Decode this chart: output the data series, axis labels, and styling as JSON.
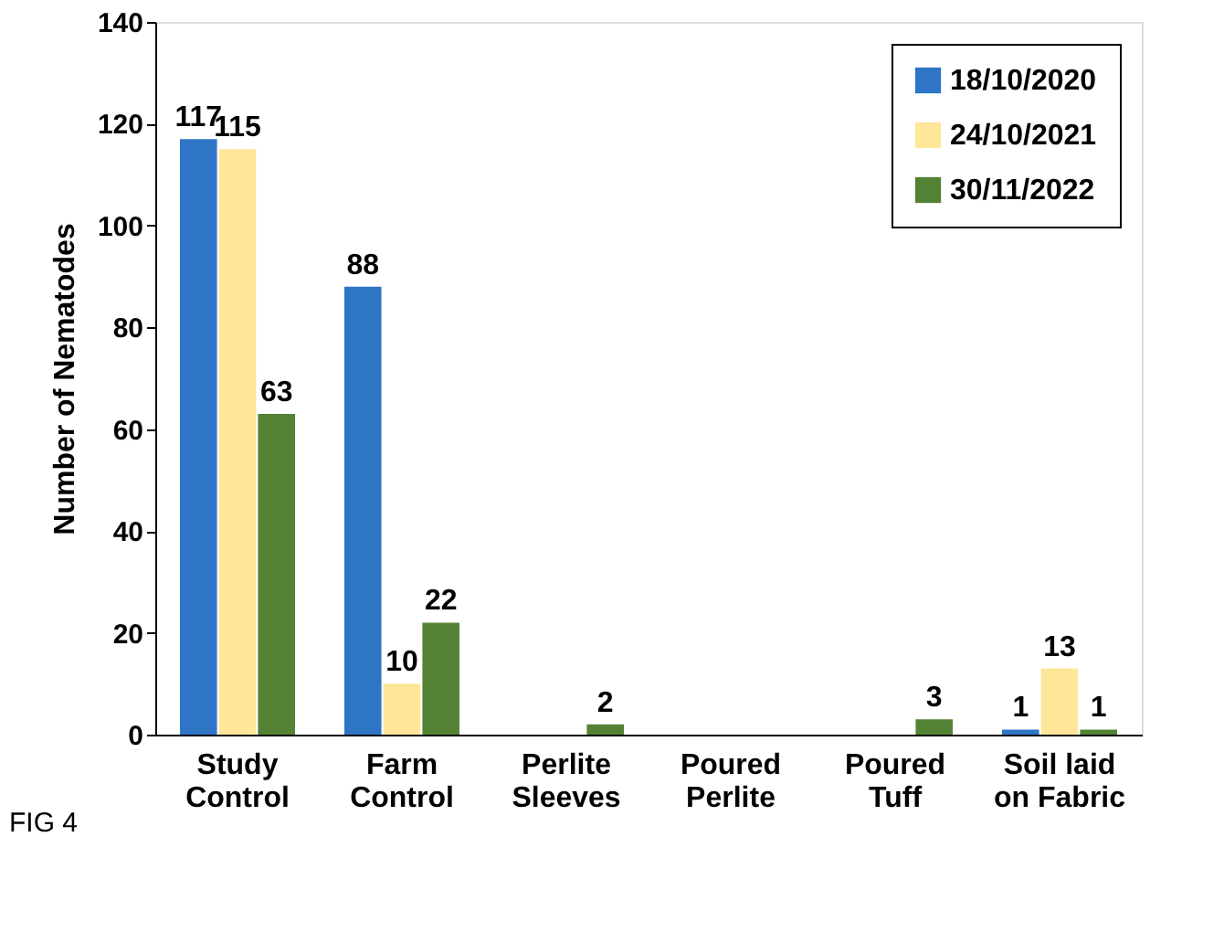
{
  "chart_data": {
    "type": "bar",
    "ylabel": "Number of Nematodes",
    "categories": [
      "Study\nControl",
      "Farm\nControl",
      "Perlite\nSleeves",
      "Poured\nPerlite",
      "Poured\nTuff",
      "Soil laid\non Fabric"
    ],
    "series": [
      {
        "name": "18/10/2020",
        "color": "#2e75c6",
        "values": [
          117,
          88,
          null,
          null,
          null,
          1
        ]
      },
      {
        "name": "24/10/2021",
        "color": "#ffe699",
        "values": [
          115,
          10,
          null,
          null,
          null,
          13
        ]
      },
      {
        "name": "30/11/2022",
        "color": "#548235",
        "values": [
          63,
          22,
          2,
          null,
          3,
          1
        ]
      }
    ],
    "ylim": [
      0,
      140
    ],
    "yticks": [
      0,
      20,
      40,
      60,
      80,
      100,
      120,
      140
    ],
    "data_labels": true,
    "grid": false,
    "legend": "top right",
    "annotations": [
      "FIG 4"
    ]
  }
}
